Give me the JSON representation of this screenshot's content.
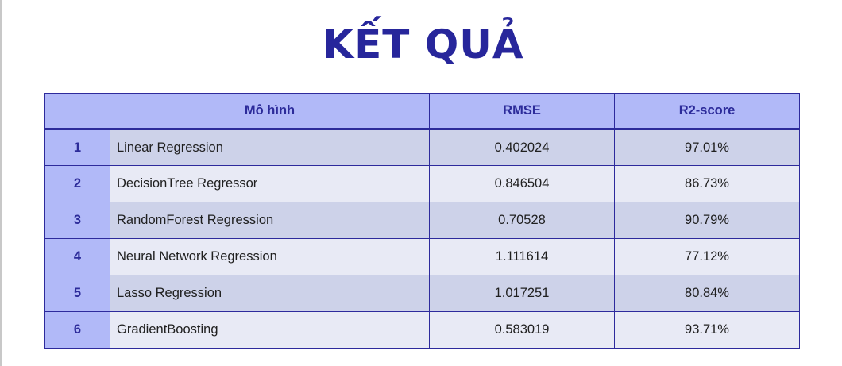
{
  "title": "KẾT QUẢ",
  "table": {
    "headers": [
      "",
      "Mô hình",
      "RMSE",
      "R2-score"
    ],
    "rows": [
      {
        "index": "1",
        "model": "Linear Regression",
        "rmse": "0.402024",
        "r2": "97.01%"
      },
      {
        "index": "2",
        "model": "DecisionTree Regressor",
        "rmse": "0.846504",
        "r2": "86.73%"
      },
      {
        "index": "3",
        "model": "RandomForest Regression",
        "rmse": "0.70528",
        "r2": "90.79%"
      },
      {
        "index": "4",
        "model": "Neural Network Regression",
        "rmse": "1.111614",
        "r2": "77.12%"
      },
      {
        "index": "5",
        "model": "Lasso Regression",
        "rmse": "1.017251",
        "r2": "80.84%"
      },
      {
        "index": "6",
        "model": "GradientBoosting",
        "rmse": "0.583019",
        "r2": "93.71%"
      }
    ]
  },
  "colors": {
    "title": "#27269b",
    "header_bg": "#b1b9f8",
    "border": "#2d2a9c",
    "row_dark": "#cdd2e9",
    "row_light": "#e8eaf5"
  }
}
